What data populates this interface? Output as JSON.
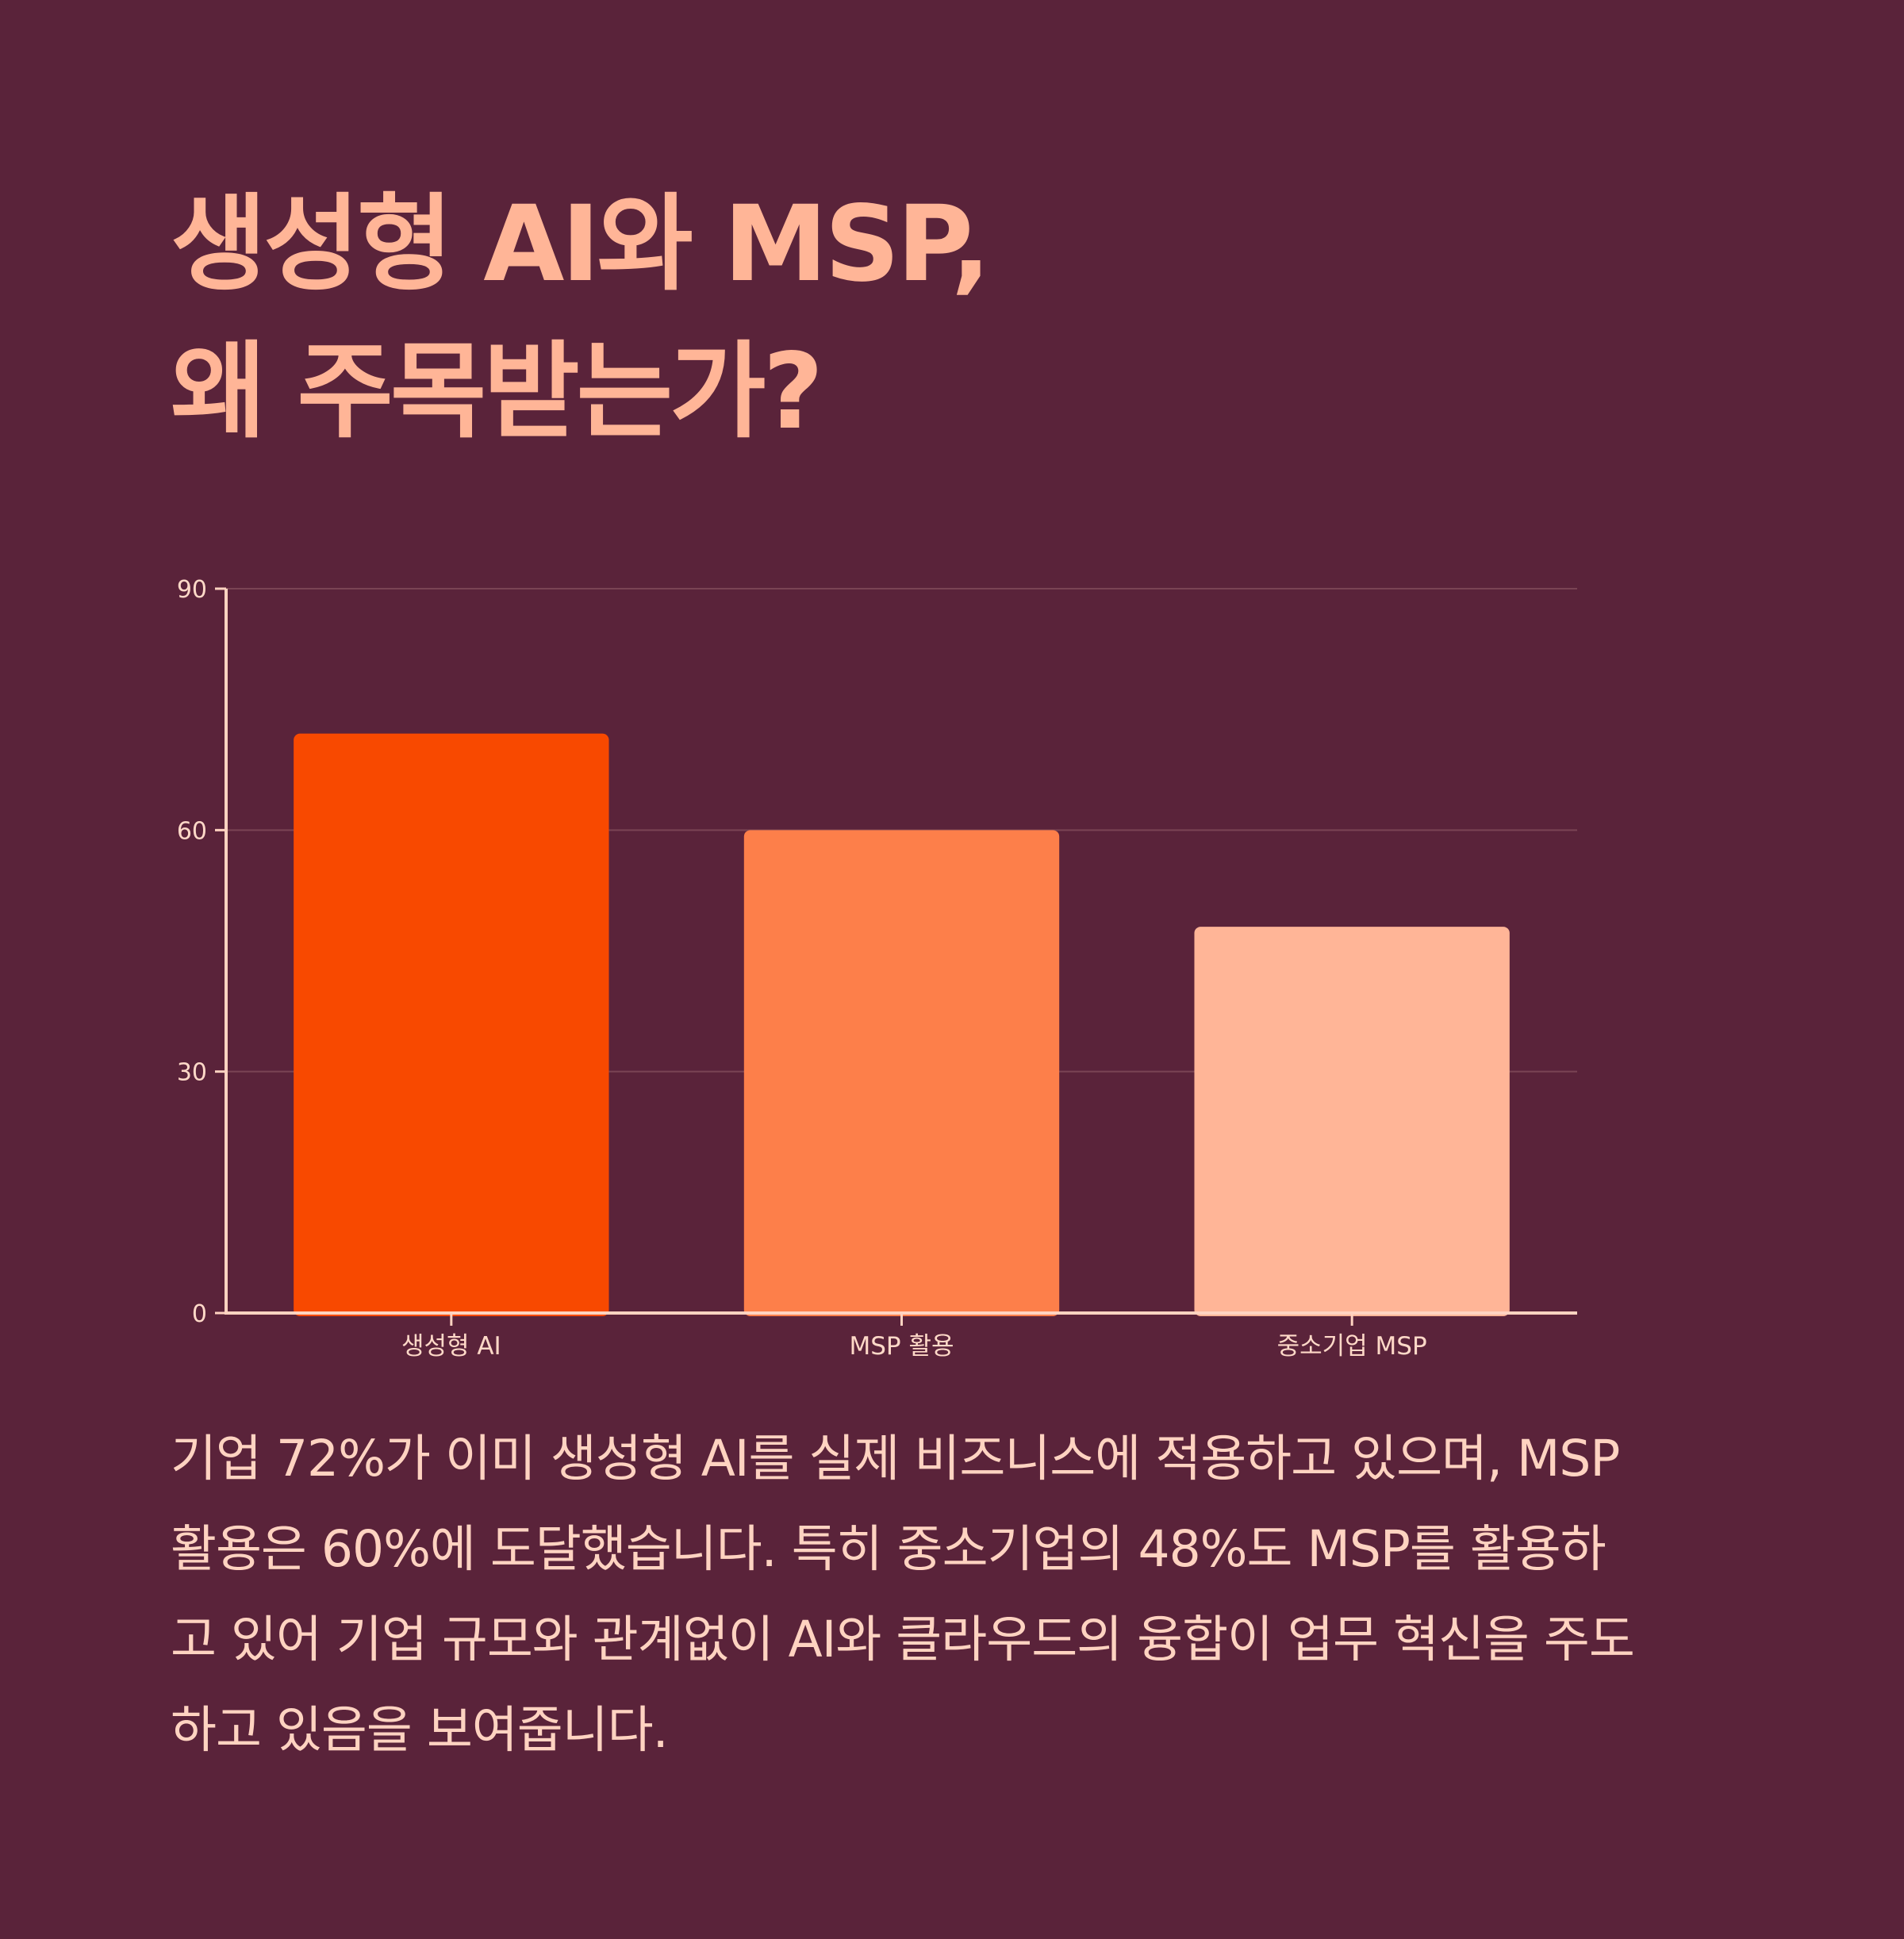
{
  "heading": {
    "line1": "생성형 AI와 MSP,",
    "line2": "왜 주목받는가?"
  },
  "colors": {
    "background": "#5a233a",
    "title": "#ffb597",
    "axis": "#ffd3c1",
    "gridline": "#7a4454",
    "text": "#ffd3c1"
  },
  "chart_data": {
    "type": "bar",
    "categories": [
      "생성형 AI",
      "MSP 활용",
      "중소기업 MSP"
    ],
    "values": [
      72,
      60,
      48
    ],
    "bar_colors": [
      "#f84900",
      "#fd7f4a",
      "#ffb597"
    ],
    "ylim": [
      0,
      90
    ],
    "yticks": [
      "0",
      "30",
      "60",
      "90"
    ],
    "grid": true,
    "legend": "none"
  },
  "description": {
    "line1": "기업 72%가 이미 생성형 AI를 실제 비즈니스에 적용하고 있으며, MSP",
    "line2": "활용은 60%에 도달했습니다. 특히 중소기업의 48%도 MSP를 활용하",
    "line3": "고 있어 기업 규모와 관계없이 AI와 클라우드의 융합이 업무 혁신을 주도",
    "line4": "하고 있음을 보여줍니다."
  }
}
